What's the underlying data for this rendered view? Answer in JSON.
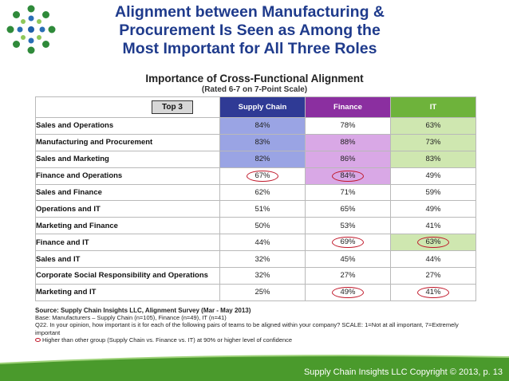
{
  "slide": {
    "title_lines": [
      "Alignment between Manufacturing &",
      "Procurement Is Seen as Among the",
      "Most Important for All Three Roles"
    ],
    "footer": "Supply Chain Insights LLC Copyright © 2013, p. 13"
  },
  "colors": {
    "title": "#1f3b8c",
    "supply_chain": "#2f3a95",
    "finance": "#8b2fa0",
    "it": "#6eb33b",
    "highlight_circle": "#c0182a",
    "footer_green": "#4a9a2c"
  },
  "chart_data": {
    "type": "table",
    "title": "Importance of Cross-Functional Alignment",
    "subtitle": "(Rated 6-7 on 7-Point Scale)",
    "corner_label": "Top 3",
    "columns": [
      "Supply Chain",
      "Finance",
      "IT"
    ],
    "rows": [
      {
        "label": "Sales and Operations",
        "values": [
          "84%",
          "78%",
          "63%"
        ],
        "top3": [
          true,
          false,
          true
        ],
        "circled": [
          false,
          false,
          false
        ]
      },
      {
        "label": "Manufacturing and Procurement",
        "values": [
          "83%",
          "88%",
          "73%"
        ],
        "top3": [
          true,
          true,
          true
        ],
        "circled": [
          false,
          false,
          false
        ]
      },
      {
        "label": "Sales and Marketing",
        "values": [
          "82%",
          "86%",
          "83%"
        ],
        "top3": [
          true,
          true,
          true
        ],
        "circled": [
          false,
          false,
          false
        ]
      },
      {
        "label": "Finance and Operations",
        "values": [
          "67%",
          "84%",
          "49%"
        ],
        "top3": [
          false,
          true,
          false
        ],
        "circled": [
          true,
          true,
          false
        ]
      },
      {
        "label": "Sales and Finance",
        "values": [
          "62%",
          "71%",
          "59%"
        ],
        "top3": [
          false,
          false,
          false
        ],
        "circled": [
          false,
          false,
          false
        ]
      },
      {
        "label": "Operations and IT",
        "values": [
          "51%",
          "65%",
          "49%"
        ],
        "top3": [
          false,
          false,
          false
        ],
        "circled": [
          false,
          false,
          false
        ]
      },
      {
        "label": "Marketing and Finance",
        "values": [
          "50%",
          "53%",
          "41%"
        ],
        "top3": [
          false,
          false,
          false
        ],
        "circled": [
          false,
          false,
          false
        ]
      },
      {
        "label": "Finance and IT",
        "values": [
          "44%",
          "69%",
          "63%"
        ],
        "top3": [
          false,
          false,
          true
        ],
        "circled": [
          false,
          true,
          true
        ]
      },
      {
        "label": "Sales and IT",
        "values": [
          "32%",
          "45%",
          "44%"
        ],
        "top3": [
          false,
          false,
          false
        ],
        "circled": [
          false,
          false,
          false
        ]
      },
      {
        "label": "Corporate Social Responsibility and Operations",
        "values": [
          "32%",
          "27%",
          "27%"
        ],
        "top3": [
          false,
          false,
          false
        ],
        "circled": [
          false,
          false,
          false
        ]
      },
      {
        "label": "Marketing and IT",
        "values": [
          "25%",
          "49%",
          "41%"
        ],
        "top3": [
          false,
          false,
          false
        ],
        "circled": [
          false,
          true,
          true
        ]
      }
    ]
  },
  "notes": {
    "source": "Source: Supply Chain Insights LLC, Alignment Survey (Mar - May 2013)",
    "base": "Base: Manufacturers – Supply Chain (n=105), Finance (n=49), IT (n=41)",
    "question": "Q22. In your opinion, how important is it for each of the following pairs of teams to be aligned within your company? SCALE: 1=Not at all important, 7=Extremely important",
    "legend": "Higher than other group (Supply Chain vs. Finance vs. IT) at 90% or higher level of confidence"
  }
}
